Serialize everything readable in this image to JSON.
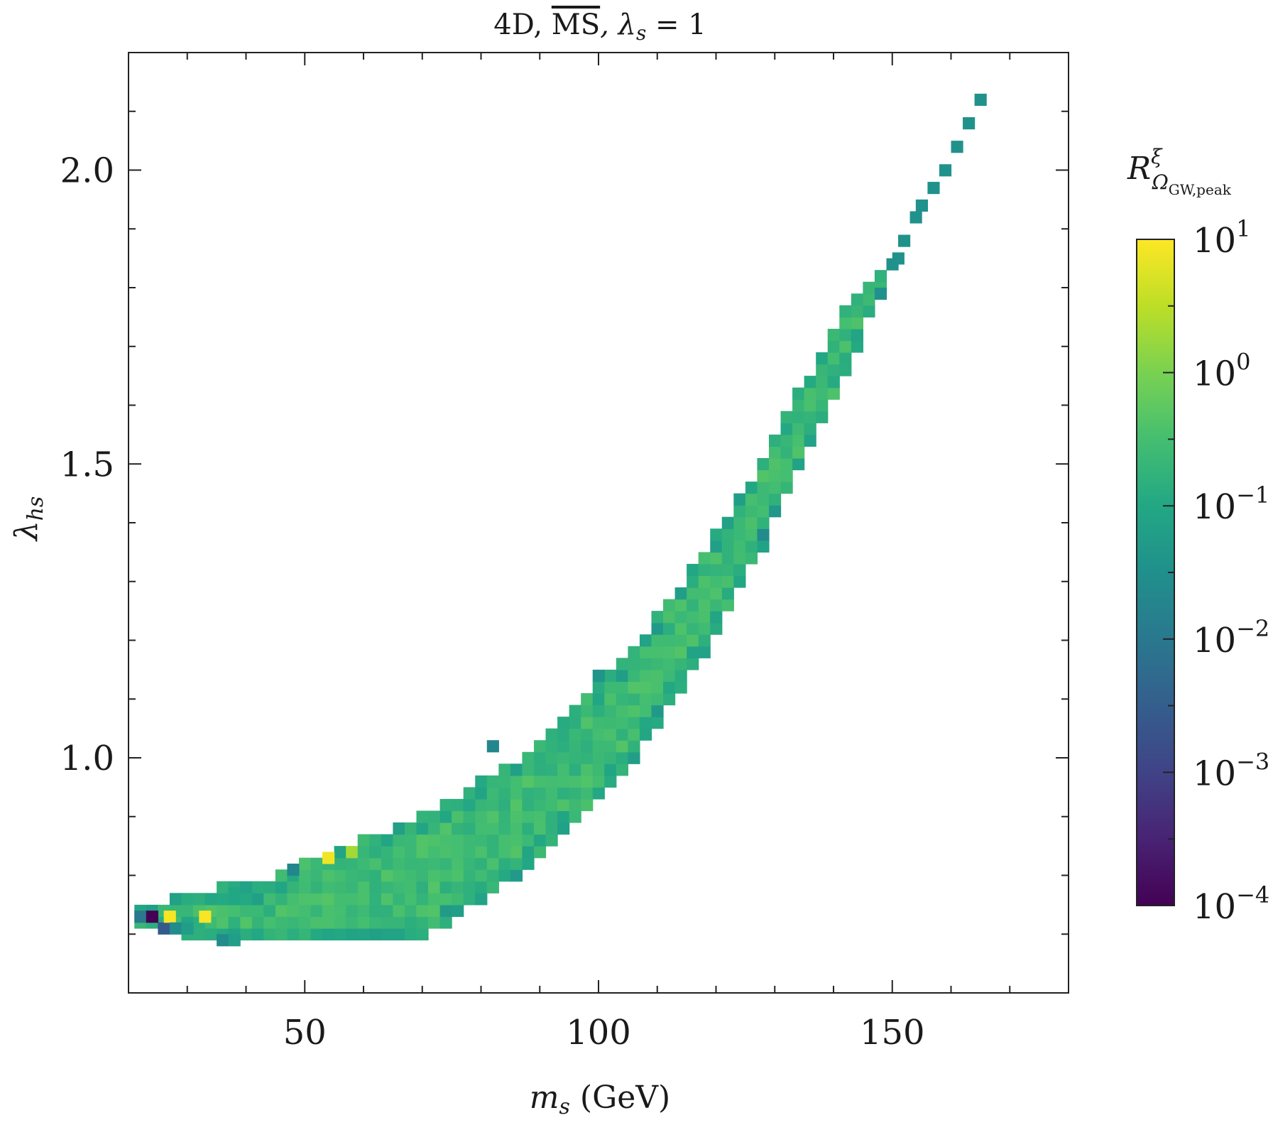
{
  "chart_data": {
    "type": "heatmap",
    "title": "4D, MS̅, λs = 1",
    "title_parts": {
      "main": "4D, ",
      "overlined": "MS",
      "rest": ",  λ",
      "sub": "s",
      "eq": " = 1"
    },
    "xlabel": {
      "symbol": "m",
      "sub": "s",
      "unit": " (GeV)"
    },
    "ylabel": {
      "symbol": "λ",
      "sub": "hs"
    },
    "xlim": [
      20,
      180
    ],
    "ylim": [
      0.6,
      2.2
    ],
    "x_ticks": [
      50,
      100,
      150
    ],
    "x_tick_labels": [
      "50",
      "100",
      "150"
    ],
    "y_ticks": [
      1.0,
      1.5,
      2.0
    ],
    "y_tick_labels": [
      "1.0",
      "1.5",
      "2.0"
    ],
    "grid": false,
    "colorbar": {
      "label": {
        "symbol": "R",
        "sup": "ξ",
        "sub": "Ω",
        "subsub": "GW,peak"
      },
      "scale": "log",
      "colormap": "viridis",
      "range_log10": [
        -4,
        1
      ],
      "tick_exponents": [
        1,
        0,
        -1,
        -2,
        -3,
        -4
      ],
      "tick_labels": [
        "10",
        "10",
        "10",
        "10",
        "10",
        "10"
      ],
      "tick_sups": [
        "1",
        "0",
        "−1",
        "−2",
        "−3",
        "−4"
      ],
      "placement": "right"
    },
    "bin_size": {
      "dx": 2.0,
      "dy": 0.02
    },
    "band": {
      "description": "filled region of the heatmap; cells are binned points",
      "lower_edge": [
        [
          22,
          0.72
        ],
        [
          26,
          0.72
        ],
        [
          34,
          0.69
        ],
        [
          40,
          0.69
        ],
        [
          50,
          0.69
        ],
        [
          60,
          0.69
        ],
        [
          67,
          0.69
        ],
        [
          72,
          0.71
        ],
        [
          78,
          0.75
        ],
        [
          85,
          0.8
        ],
        [
          90,
          0.84
        ],
        [
          95,
          0.88
        ],
        [
          100,
          0.93
        ],
        [
          105,
          0.99
        ],
        [
          110,
          1.06
        ],
        [
          115,
          1.14
        ],
        [
          120,
          1.22
        ],
        [
          125,
          1.31
        ],
        [
          130,
          1.41
        ],
        [
          135,
          1.51
        ],
        [
          140,
          1.62
        ],
        [
          145,
          1.73
        ],
        [
          148,
          1.8
        ]
      ],
      "upper_edge": [
        [
          22,
          0.74
        ],
        [
          28,
          0.76
        ],
        [
          35,
          0.78
        ],
        [
          42,
          0.79
        ],
        [
          50,
          0.82
        ],
        [
          55,
          0.84
        ],
        [
          60,
          0.86
        ],
        [
          65,
          0.88
        ],
        [
          70,
          0.9
        ],
        [
          75,
          0.93
        ],
        [
          80,
          0.96
        ],
        [
          85,
          0.99
        ],
        [
          90,
          1.03
        ],
        [
          95,
          1.07
        ],
        [
          100,
          1.12
        ],
        [
          105,
          1.18
        ],
        [
          110,
          1.24
        ],
        [
          115,
          1.31
        ],
        [
          120,
          1.38
        ],
        [
          125,
          1.46
        ],
        [
          130,
          1.55
        ],
        [
          135,
          1.64
        ],
        [
          140,
          1.73
        ],
        [
          145,
          1.81
        ],
        [
          148,
          1.82
        ]
      ],
      "typical_log10R": -0.6
    },
    "tail_cells": [
      [
        148,
        1.79
      ],
      [
        150,
        1.84
      ],
      [
        151,
        1.85
      ],
      [
        152,
        1.88
      ],
      [
        154,
        1.92
      ],
      [
        155,
        1.94
      ],
      [
        157,
        1.97
      ],
      [
        159,
        2.0
      ],
      [
        161,
        2.04
      ],
      [
        163,
        2.08
      ],
      [
        165,
        2.12
      ]
    ],
    "special_cells": [
      {
        "x": 22,
        "y": 0.73,
        "log10R": -2.0
      },
      {
        "x": 24,
        "y": 0.73,
        "log10R": -4.0
      },
      {
        "x": 26,
        "y": 0.71,
        "log10R": -2.6
      },
      {
        "x": 27,
        "y": 0.73,
        "log10R": 0.95
      },
      {
        "x": 33,
        "y": 0.73,
        "log10R": 0.95
      },
      {
        "x": 28,
        "y": 0.71,
        "log10R": -1.6
      },
      {
        "x": 30,
        "y": 0.71,
        "log10R": -1.2
      },
      {
        "x": 36,
        "y": 0.69,
        "log10R": -1.6
      },
      {
        "x": 38,
        "y": 0.69,
        "log10R": -1.2
      },
      {
        "x": 38,
        "y": 0.77,
        "log10R": -1.0
      },
      {
        "x": 48,
        "y": 0.81,
        "log10R": -1.7
      },
      {
        "x": 54,
        "y": 0.83,
        "log10R": 0.9
      },
      {
        "x": 58,
        "y": 0.84,
        "log10R": 0.3
      },
      {
        "x": 82,
        "y": 1.02,
        "log10R": -1.7
      },
      {
        "x": 100,
        "y": 1.14,
        "log10R": -1.4
      },
      {
        "x": 128,
        "y": 1.38,
        "log10R": -1.6
      }
    ],
    "holes": [
      [
        28,
        0.73
      ],
      [
        30,
        0.73
      ],
      [
        40,
        0.71
      ]
    ]
  }
}
